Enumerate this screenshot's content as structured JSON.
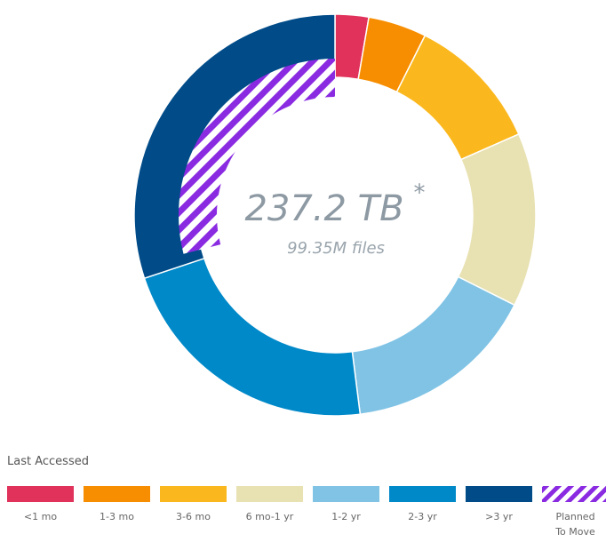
{
  "chart_data": {
    "type": "donut",
    "center_value": "237.2 TB",
    "center_marker": "*",
    "center_subtitle": "99.35M files",
    "legend_title": "Last Accessed",
    "categories": [
      "<1 mo",
      "1-3 mo",
      "3-6 mo",
      "6 mo-1 yr",
      "1-2 yr",
      "2-3 yr",
      ">3 yr"
    ],
    "values": [
      2.7,
      4.7,
      11,
      14,
      15.6,
      21.9,
      30.1
    ],
    "colors": [
      "#e0325b",
      "#f78d00",
      "#fbb81e",
      "#e8e1b2",
      "#80c3e5",
      "#0089c9",
      "#004b88"
    ],
    "planned": {
      "name": "Planned To Move",
      "value": 29,
      "color": "#8a2be2"
    }
  }
}
